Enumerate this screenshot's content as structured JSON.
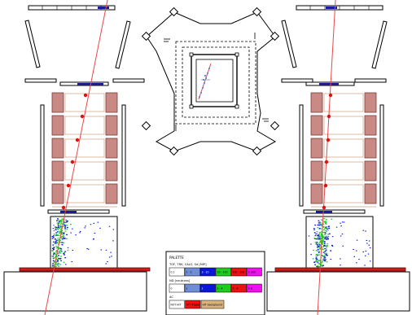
{
  "palette": {
    "title": "PALETTE",
    "rows": [
      {
        "label": "TOF, TRK, CALO, Sd [MIP]",
        "cells": [
          {
            "text": "0.1",
            "color": "#ffffff"
          },
          {
            "text": "1 - 3",
            "color": "#6f8ed6"
          },
          {
            "text": "3 - 10",
            "color": "#0a16d8"
          },
          {
            "text": "10 - 100",
            "color": "#1ecb1e"
          },
          {
            "text": "100 - 300",
            "color": "#ee1111"
          },
          {
            "text": "> 300",
            "color": "#ee11ee"
          }
        ]
      },
      {
        "label": "ND [neutrons]",
        "cells": [
          {
            "text": "0",
            "color": "#ffffff"
          },
          {
            "text": "1",
            "color": "#6f8ed6"
          },
          {
            "text": "2",
            "color": "#0a16d8"
          },
          {
            "text": "3 - 4",
            "color": "#1ecb1e"
          },
          {
            "text": "5 - 8",
            "color": "#ee1111"
          },
          {
            "text": "> 8",
            "color": "#ee11ee"
          }
        ]
      },
      {
        "label": "AC",
        "cells": [
          {
            "text": "NOT HIT",
            "color": "#ffffff"
          },
          {
            "text": "HIT Trigger",
            "color": "#ee1111"
          },
          {
            "text": "HIT background",
            "color": "#d8b27a"
          }
        ]
      }
    ]
  },
  "colors": {
    "track": "#e8484a",
    "tof_hit": "#1a1aa0",
    "calo_block": "#c98a86",
    "calo_border": "#7a3a36",
    "anticoincidence": "#d21a1a"
  }
}
